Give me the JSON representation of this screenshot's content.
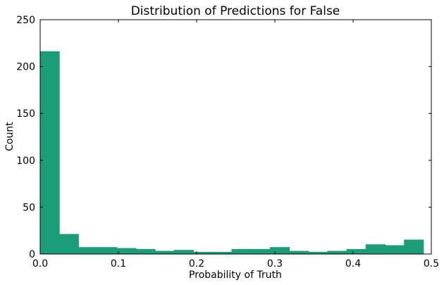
{
  "chart_data": {
    "type": "bar",
    "title": "Distribution of Predictions for False",
    "xlabel": "Probability of Truth",
    "ylabel": "Count",
    "xlim": [
      0.0,
      0.5
    ],
    "ylim": [
      0,
      250
    ],
    "x_ticks": [
      "0.0",
      "0.1",
      "0.2",
      "0.3",
      "0.4",
      "0.5"
    ],
    "y_ticks": [
      "0",
      "50",
      "100",
      "150",
      "200",
      "250"
    ],
    "bin_edges": [
      0.0,
      0.0245,
      0.049,
      0.0735,
      0.098,
      0.1225,
      0.147,
      0.1715,
      0.196,
      0.2205,
      0.245,
      0.2695,
      0.294,
      0.3185,
      0.343,
      0.3675,
      0.392,
      0.4165,
      0.441,
      0.4655,
      0.49
    ],
    "values": [
      216,
      21,
      7,
      7,
      6,
      5,
      3,
      4,
      2,
      2,
      5,
      5,
      7,
      3,
      2,
      3,
      5,
      10,
      9,
      15
    ],
    "bar_color": "#1b9e77",
    "grid": false,
    "legend": "none"
  }
}
